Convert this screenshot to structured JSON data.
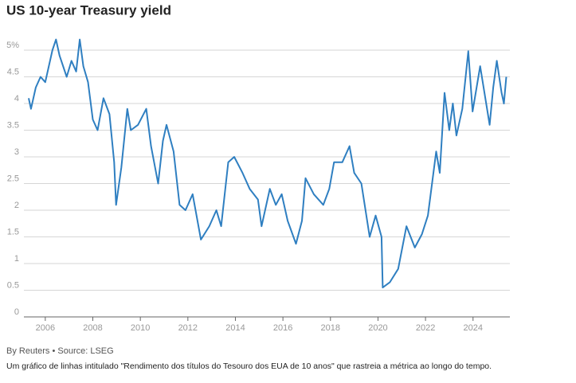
{
  "chart_data": {
    "type": "line",
    "title": "US 10-year Treasury yield",
    "source": "By Reuters • Source: LSEG",
    "description": "Um gráfico de linhas intitulado \"Rendimento dos títulos do Tesouro dos EUA de 10 anos\" que rastreia a métrica ao longo do tempo.",
    "x": [
      2005.3,
      2005.4,
      2005.6,
      2005.8,
      2006.0,
      2006.3,
      2006.45,
      2006.6,
      2006.9,
      2007.1,
      2007.3,
      2007.45,
      2007.6,
      2007.8,
      2008.0,
      2008.2,
      2008.45,
      2008.7,
      2008.9,
      2008.98,
      2009.2,
      2009.45,
      2009.6,
      2009.9,
      2010.25,
      2010.45,
      2010.75,
      2010.95,
      2011.1,
      2011.4,
      2011.65,
      2011.9,
      2012.2,
      2012.55,
      2012.9,
      2013.2,
      2013.4,
      2013.7,
      2013.95,
      2014.3,
      2014.6,
      2014.95,
      2015.1,
      2015.45,
      2015.7,
      2015.95,
      2016.2,
      2016.55,
      2016.8,
      2016.95,
      2017.3,
      2017.7,
      2017.95,
      2018.15,
      2018.5,
      2018.8,
      2019.0,
      2019.3,
      2019.65,
      2019.9,
      2020.15,
      2020.2,
      2020.5,
      2020.85,
      2021.2,
      2021.55,
      2021.85,
      2022.1,
      2022.45,
      2022.6,
      2022.8,
      2023.0,
      2023.15,
      2023.3,
      2023.55,
      2023.8,
      2023.98,
      2024.3,
      2024.7,
      2024.85,
      2025.0,
      2025.2,
      2025.3,
      2025.4
    ],
    "series": [
      {
        "name": "US 10-year Treasury yield",
        "color": "#2f7fc1",
        "values": [
          4.1,
          3.9,
          4.3,
          4.5,
          4.4,
          5.0,
          5.2,
          4.9,
          4.5,
          4.8,
          4.6,
          5.2,
          4.7,
          4.4,
          3.7,
          3.5,
          4.1,
          3.8,
          2.9,
          2.1,
          2.8,
          3.9,
          3.5,
          3.6,
          3.9,
          3.2,
          2.5,
          3.3,
          3.6,
          3.1,
          2.1,
          2.0,
          2.3,
          1.45,
          1.7,
          2.0,
          1.7,
          2.9,
          3.0,
          2.7,
          2.4,
          2.2,
          1.7,
          2.4,
          2.1,
          2.3,
          1.8,
          1.37,
          1.8,
          2.6,
          2.3,
          2.1,
          2.4,
          2.9,
          2.9,
          3.2,
          2.7,
          2.5,
          1.5,
          1.9,
          1.5,
          0.55,
          0.65,
          0.9,
          1.7,
          1.3,
          1.55,
          1.9,
          3.1,
          2.7,
          4.2,
          3.5,
          4.0,
          3.4,
          3.9,
          4.98,
          3.85,
          4.7,
          3.6,
          4.3,
          4.8,
          4.2,
          4.0,
          4.5
        ]
      }
    ],
    "xlim": [
      2005.1,
      2025.55
    ],
    "xticks": [
      2006,
      2008,
      2010,
      2012,
      2014,
      2016,
      2018,
      2020,
      2022,
      2024
    ],
    "ylim": [
      0,
      5.5
    ],
    "yticks": [
      0,
      0.5,
      1,
      1.5,
      2,
      2.5,
      3,
      3.5,
      4,
      4.5,
      {
        "value": 5,
        "label": "5%"
      }
    ],
    "grid": true
  }
}
